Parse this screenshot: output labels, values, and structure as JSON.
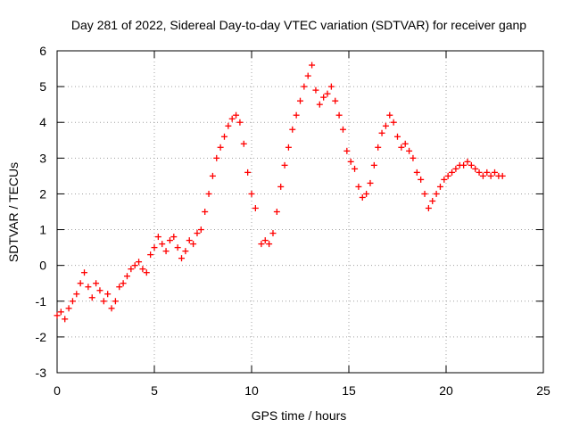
{
  "chart_data": {
    "type": "scatter",
    "title": "Day 281 of 2022, Sidereal Day-to-day VTEC variation (SDTVAR) for receiver ganp",
    "xlabel": "GPS time / hours",
    "ylabel": "SDTVAR / TECUs",
    "xlim": [
      0,
      25
    ],
    "ylim": [
      -3,
      6
    ],
    "xticks": [
      "0",
      "5",
      "10",
      "15",
      "20",
      "25"
    ],
    "yticks": [
      "-3",
      "-2",
      "-1",
      "0",
      "1",
      "2",
      "3",
      "4",
      "5",
      "6"
    ],
    "grid": true,
    "marker": "+",
    "series_color": "#ff0000",
    "series": [
      {
        "name": "SDTVAR",
        "x": [
          0.0,
          0.2,
          0.4,
          0.6,
          0.8,
          1.0,
          1.2,
          1.4,
          1.6,
          1.8,
          2.0,
          2.2,
          2.4,
          2.6,
          2.8,
          3.0,
          3.2,
          3.4,
          3.6,
          3.8,
          4.0,
          4.2,
          4.4,
          4.6,
          4.8,
          5.0,
          5.2,
          5.4,
          5.6,
          5.8,
          6.0,
          6.2,
          6.4,
          6.6,
          6.8,
          7.0,
          7.2,
          7.4,
          7.6,
          7.8,
          8.0,
          8.2,
          8.4,
          8.6,
          8.8,
          9.0,
          9.2,
          9.4,
          9.6,
          9.8,
          10.0,
          10.2,
          10.5,
          10.7,
          10.9,
          11.1,
          11.3,
          11.5,
          11.7,
          11.9,
          12.1,
          12.3,
          12.5,
          12.7,
          12.9,
          13.1,
          13.3,
          13.5,
          13.7,
          13.9,
          14.1,
          14.3,
          14.5,
          14.7,
          14.9,
          15.1,
          15.3,
          15.5,
          15.7,
          15.9,
          16.1,
          16.3,
          16.5,
          16.7,
          16.9,
          17.1,
          17.3,
          17.5,
          17.7,
          17.9,
          18.1,
          18.3,
          18.5,
          18.7,
          18.9,
          19.1,
          19.3,
          19.5,
          19.7,
          19.9,
          20.1,
          20.3,
          20.5,
          20.7,
          20.9,
          21.1,
          21.3,
          21.5,
          21.7,
          21.9,
          22.1,
          22.3,
          22.5,
          22.7,
          22.9
        ],
        "values": [
          -1.4,
          -1.3,
          -1.5,
          -1.2,
          -1.0,
          -0.8,
          -0.5,
          -0.2,
          -0.6,
          -0.9,
          -0.5,
          -0.7,
          -1.0,
          -0.8,
          -1.2,
          -1.0,
          -0.6,
          -0.5,
          -0.3,
          -0.1,
          0.0,
          0.1,
          -0.1,
          -0.2,
          0.3,
          0.5,
          0.8,
          0.6,
          0.4,
          0.7,
          0.8,
          0.5,
          0.2,
          0.4,
          0.7,
          0.6,
          0.9,
          1.0,
          1.5,
          2.0,
          2.5,
          3.0,
          3.3,
          3.6,
          3.9,
          4.1,
          4.2,
          4.0,
          3.4,
          2.6,
          2.0,
          1.6,
          0.6,
          0.7,
          0.6,
          0.9,
          1.5,
          2.2,
          2.8,
          3.3,
          3.8,
          4.2,
          4.6,
          5.0,
          5.3,
          5.6,
          4.9,
          4.5,
          4.7,
          4.8,
          5.0,
          4.6,
          4.2,
          3.8,
          3.2,
          2.9,
          2.7,
          2.2,
          1.9,
          2.0,
          2.3,
          2.8,
          3.3,
          3.7,
          3.9,
          4.2,
          4.0,
          3.6,
          3.3,
          3.4,
          3.2,
          3.0,
          2.6,
          2.4,
          2.0,
          1.6,
          1.8,
          2.0,
          2.2,
          2.4,
          2.5,
          2.6,
          2.7,
          2.8,
          2.8,
          2.9,
          2.8,
          2.7,
          2.6,
          2.5,
          2.6,
          2.5,
          2.6,
          2.5,
          2.5
        ]
      }
    ]
  }
}
